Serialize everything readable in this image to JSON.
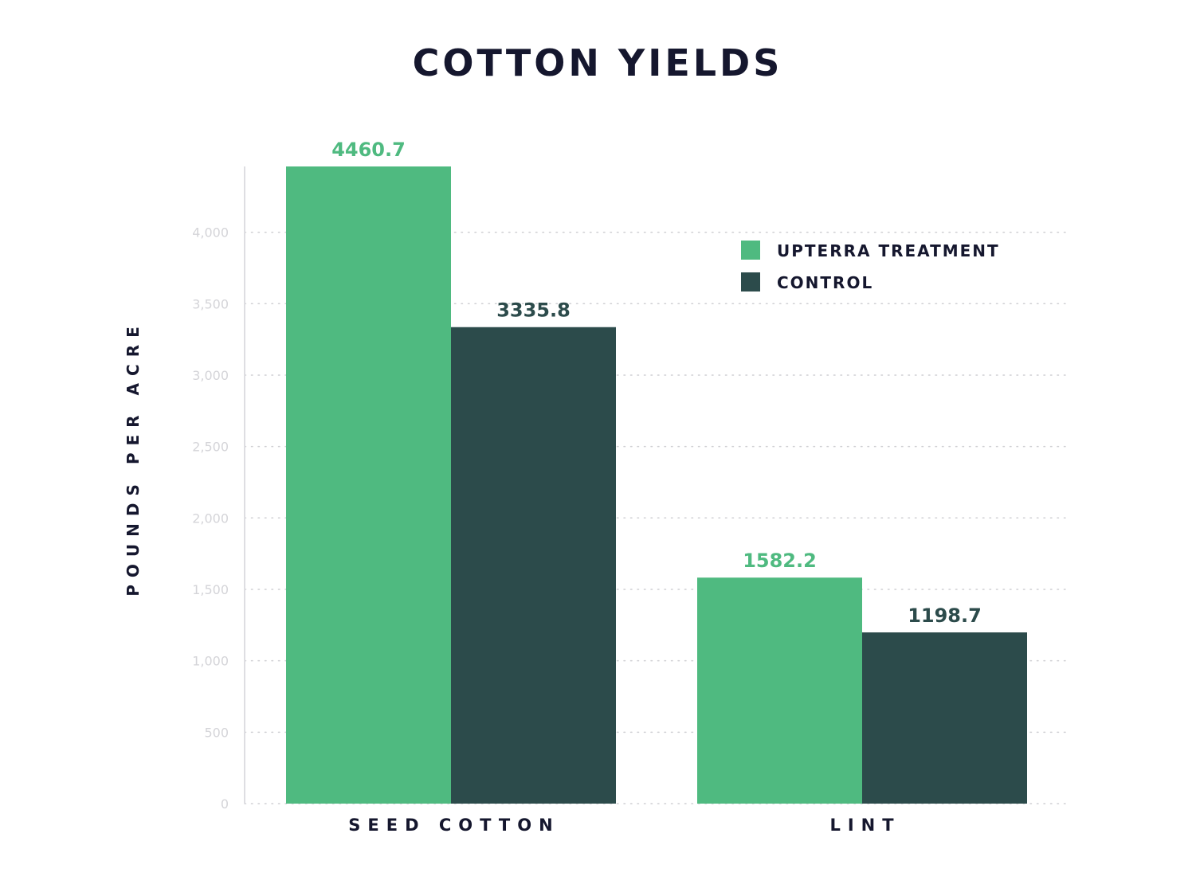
{
  "chart_data": {
    "type": "bar",
    "title": "COTTON YIELDS",
    "xlabel": "",
    "ylabel": "POUNDS PER ACRE",
    "categories": [
      "SEED COTTON",
      "LINT"
    ],
    "series": [
      {
        "name": "UPTERRA TREATMENT",
        "values": [
          4460.7,
          1582.2
        ],
        "value_labels": [
          "4460.7",
          "1582.2"
        ],
        "color": "#4fba80"
      },
      {
        "name": "CONTROL",
        "values": [
          3335.8,
          1198.7
        ],
        "value_labels": [
          "3335.8",
          "1198.7"
        ],
        "color": "#2c4b4b"
      }
    ],
    "ylim": [
      0,
      4460.7
    ],
    "yticks": [
      0,
      500,
      1000,
      1500,
      2000,
      2500,
      3000,
      3500,
      4000
    ],
    "ytick_labels": [
      "0",
      "500",
      "1,000",
      "1,500",
      "2,000",
      "2,500",
      "3,000",
      "3,500",
      "4,000"
    ],
    "grid": "horizontal-dotted",
    "legend_position": "top-right",
    "colors": {
      "title": "#15172e",
      "axis_title": "#15172e",
      "tick": "#d4d4d8",
      "grid": "#cfcfd3",
      "axis_line": "#dedee2"
    }
  }
}
